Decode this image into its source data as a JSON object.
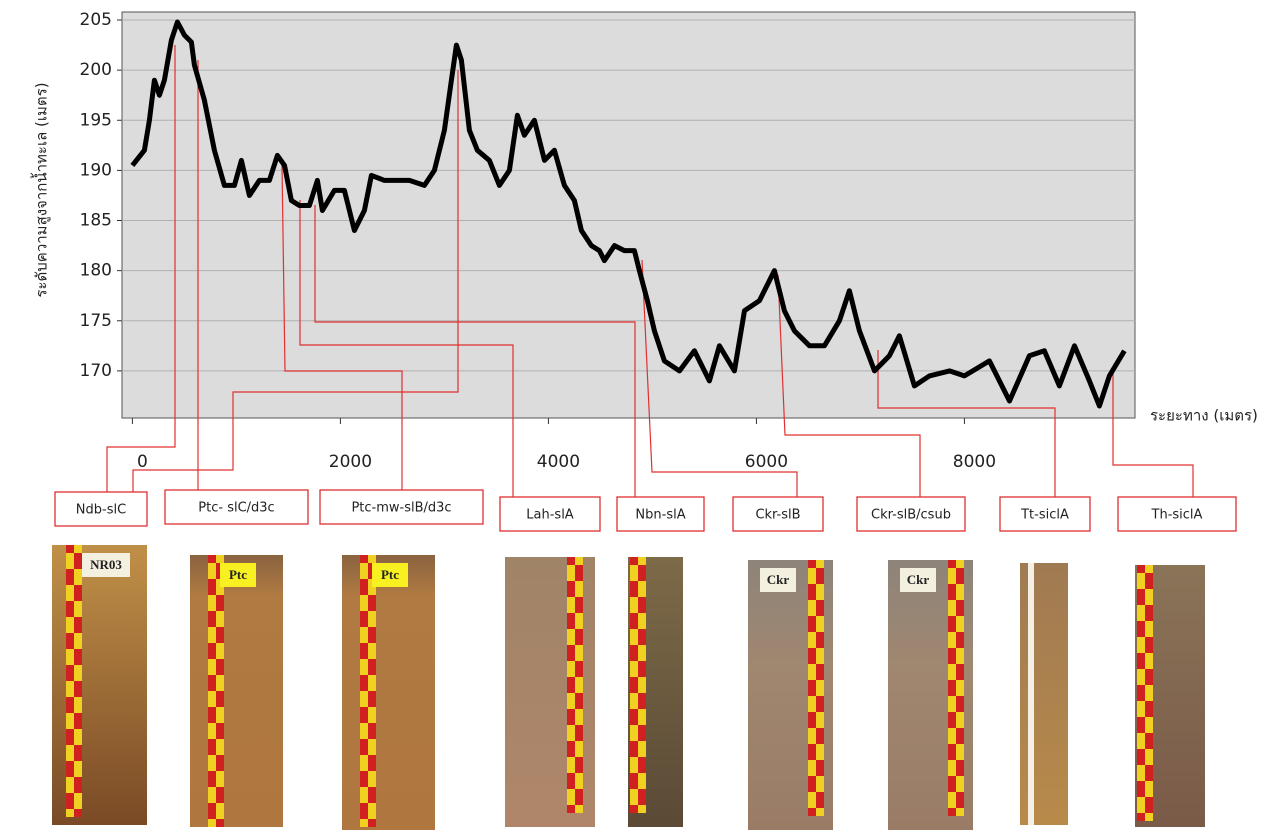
{
  "chart_data": {
    "type": "line",
    "ylabel": "ระดับความสูงจากน้ำทะเล (เมตร)",
    "xlabel": "ระยะทาง (เมตร)",
    "color": "#000000",
    "grid": true,
    "xlim": [
      -100,
      9640
    ],
    "ylim": [
      165.3,
      205.8
    ],
    "xticks": [
      0,
      2000,
      4000,
      6000,
      8000
    ],
    "yticks": [
      170,
      175,
      180,
      185,
      190,
      195,
      200,
      205
    ],
    "x": [
      0,
      115,
      163,
      212,
      260,
      308,
      375,
      433,
      500,
      567,
      596,
      692,
      788,
      885,
      981,
      1048,
      1125,
      1221,
      1317,
      1394,
      1462,
      1529,
      1606,
      1702,
      1779,
      1827,
      1942,
      2038,
      2135,
      2231,
      2298,
      2423,
      2519,
      2663,
      2808,
      2904,
      3000,
      3067,
      3115,
      3163,
      3240,
      3317,
      3433,
      3529,
      3625,
      3702,
      3769,
      3865,
      3962,
      4058,
      4154,
      4250,
      4317,
      4413,
      4490,
      4538,
      4635,
      4731,
      4827,
      4875,
      4952,
      5019,
      5115,
      5260,
      5404,
      5548,
      5644,
      5788,
      5885,
      6029,
      6173,
      6269,
      6365,
      6510,
      6654,
      6798,
      6894,
      6990,
      7135,
      7279,
      7375,
      7519,
      7663,
      7856,
      8000,
      8240,
      8433,
      8625,
      8769,
      8913,
      9058,
      9202,
      9298,
      9394,
      9538
    ],
    "values": [
      190.5,
      192,
      195,
      199,
      197.5,
      199,
      203,
      204.8,
      203.5,
      202.8,
      200.5,
      197,
      192,
      188.5,
      188.5,
      191,
      187.5,
      189,
      189,
      191.5,
      190.5,
      187,
      186.5,
      186.5,
      189,
      186,
      188,
      188,
      184,
      186,
      189.5,
      189,
      189,
      189,
      188.5,
      190,
      194,
      199,
      202.5,
      201,
      194,
      192,
      191,
      188.5,
      190,
      195.5,
      193.5,
      195,
      191,
      192,
      188.5,
      187,
      184,
      182.5,
      182,
      181,
      182.5,
      182,
      182,
      180,
      177,
      174,
      171,
      170,
      172,
      169,
      172.5,
      170,
      176,
      177,
      180,
      176,
      174,
      172.5,
      172.5,
      175,
      178,
      174,
      170,
      171.5,
      173.5,
      168.5,
      169.5,
      170,
      169.5,
      171,
      167,
      171.5,
      172,
      168.5,
      172.5,
      169,
      166.5,
      169.5,
      172
    ],
    "annotations": [
      {
        "label": "Ndb-slC",
        "photo_label": "NR03"
      },
      {
        "label": "Ptc- slC/d3c",
        "photo_label": "Ptc"
      },
      {
        "label": "Ptc-mw-slB/d3c",
        "photo_label": "Ptc"
      },
      {
        "label": "Lah-slA"
      },
      {
        "label": "Nbn-slA"
      },
      {
        "label": "Ckr-slB",
        "photo_label": "Ckr"
      },
      {
        "label": "Ckr-slB/csub",
        "photo_label": "Ckr"
      },
      {
        "label": "Tt-siclA"
      },
      {
        "label": "Th-siclA"
      }
    ]
  }
}
